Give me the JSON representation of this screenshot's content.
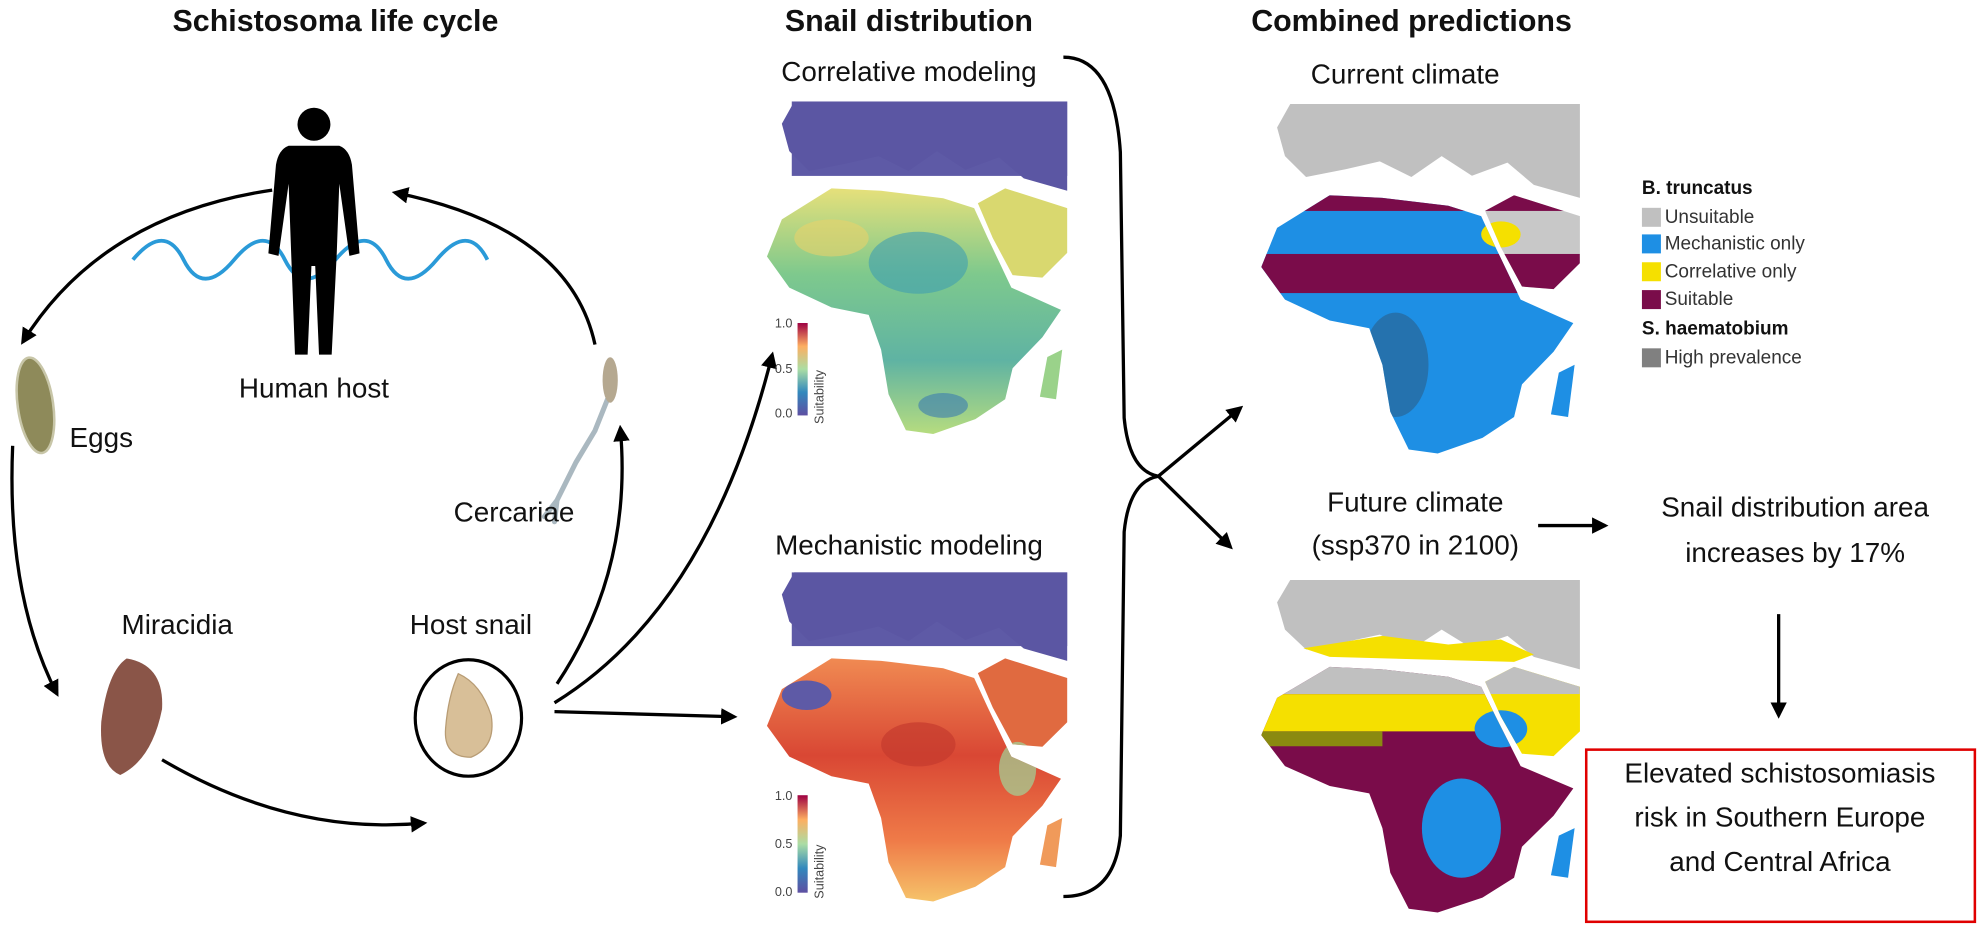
{
  "sections": [
    {
      "title": "Schistosoma life cycle"
    },
    {
      "title": "Snail distribution"
    },
    {
      "title": "Combined predictions"
    }
  ],
  "life_cycle": {
    "nodes": [
      {
        "label": "Human host"
      },
      {
        "label": "Eggs"
      },
      {
        "label": "Cercariae"
      },
      {
        "label": "Miracidia"
      },
      {
        "label": "Host snail"
      }
    ]
  },
  "snail_distribution": {
    "panels": [
      {
        "label": "Correlative modeling",
        "colorbar": {
          "ticks": [
            "1.0",
            "0.5",
            "0.0"
          ],
          "label": "Suitability"
        }
      },
      {
        "label": "Mechanistic modeling",
        "colorbar": {
          "ticks": [
            "1.0",
            "0.5",
            "0.0"
          ],
          "label": "Suitability"
        }
      }
    ]
  },
  "combined_predictions": {
    "panels": [
      {
        "label": [
          "Current climate"
        ]
      },
      {
        "label": [
          "Future climate",
          "(ssp370 in 2100)"
        ]
      }
    ],
    "legend": [
      {
        "title": "B. truncatus",
        "items": [
          "Unsuitable",
          "Mechanistic only",
          "Correlative only",
          "Suitable"
        ]
      },
      {
        "title": "S. haematobium",
        "items": [
          "High prevalence"
        ]
      }
    ]
  },
  "outcome": {
    "finding": [
      "Snail distribution area",
      "increases by 17%"
    ],
    "conclusion": [
      "Elevated schistosomiasis",
      "risk in Southern Europe",
      "and Central Africa"
    ]
  }
}
